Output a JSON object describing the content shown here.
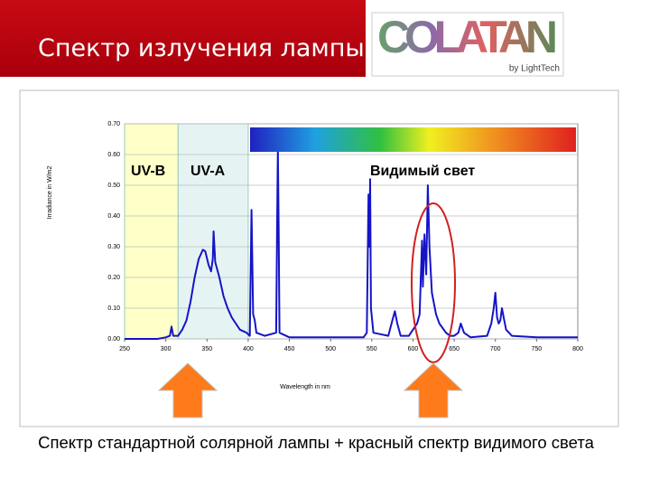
{
  "header": {
    "title": "Спектр излучения лампы"
  },
  "logo": {
    "name": "COLATAN",
    "tagline": "by LightTech"
  },
  "chart_data": {
    "type": "line",
    "x_label": "Wavelength in nm",
    "y_label": "Irradiance in W/m2",
    "xlim": [
      250,
      800
    ],
    "xticks": [
      250,
      300,
      350,
      400,
      450,
      500,
      550,
      600,
      650,
      700,
      750,
      800
    ],
    "ylim": [
      0,
      0.7
    ],
    "yticks": [
      {
        "value": 0,
        "label": "0.00"
      },
      {
        "value": 0.1,
        "label": "0.10"
      },
      {
        "value": 0.2,
        "label": "0.20"
      },
      {
        "value": 0.3,
        "label": "0.30"
      },
      {
        "value": 0.4,
        "label": "0.40"
      },
      {
        "value": 0.5,
        "label": "0.50"
      },
      {
        "value": 0.6,
        "label": "0.60"
      },
      {
        "value": 0.7,
        "label": "0.70"
      }
    ],
    "grid": true,
    "regions": [
      {
        "range": [
          250,
          315
        ],
        "color": "#ffffc8"
      },
      {
        "range": [
          315,
          400
        ],
        "color": "#e6f3f3"
      }
    ],
    "annotations": [
      "UV-B",
      "UV-A",
      "Видимый свет"
    ],
    "series": [
      {
        "color": "#1414c8",
        "x": [
          250,
          290,
          300,
          305,
          307,
          309,
          315,
          320,
          325,
          330,
          335,
          340,
          345,
          348,
          352,
          355,
          357,
          358,
          360,
          365,
          370,
          375,
          380,
          385,
          390,
          398,
          402,
          404,
          406,
          408,
          410,
          420,
          434,
          435,
          436,
          437,
          438,
          450,
          540,
          544,
          546,
          547,
          548,
          549,
          552,
          570,
          575,
          578,
          581,
          585,
          595,
          600,
          605,
          608,
          611,
          612,
          614,
          616,
          618,
          620,
          623,
          628,
          632,
          640,
          645,
          650,
          655,
          658,
          662,
          670,
          690,
          695,
          698,
          700,
          702,
          704,
          706,
          708,
          710,
          713,
          720,
          750,
          800
        ],
        "values": [
          0,
          0,
          0.005,
          0.01,
          0.04,
          0.01,
          0.01,
          0.03,
          0.06,
          0.12,
          0.2,
          0.26,
          0.29,
          0.285,
          0.24,
          0.22,
          0.26,
          0.35,
          0.25,
          0.2,
          0.14,
          0.1,
          0.07,
          0.05,
          0.03,
          0.02,
          0.01,
          0.42,
          0.08,
          0.06,
          0.02,
          0.01,
          0.02,
          0.35,
          0.62,
          0.35,
          0.02,
          0.005,
          0.005,
          0.02,
          0.47,
          0.3,
          0.52,
          0.1,
          0.02,
          0.01,
          0.06,
          0.09,
          0.05,
          0.01,
          0.01,
          0.03,
          0.05,
          0.08,
          0.32,
          0.17,
          0.34,
          0.21,
          0.5,
          0.3,
          0.15,
          0.08,
          0.05,
          0.02,
          0.01,
          0.01,
          0.02,
          0.05,
          0.02,
          0.005,
          0.01,
          0.05,
          0.1,
          0.15,
          0.07,
          0.05,
          0.06,
          0.1,
          0.07,
          0.03,
          0.01,
          0.005,
          0.005
        ]
      }
    ]
  },
  "caption": "Спектр стандартной солярной лампы + красный спектр видимого света"
}
